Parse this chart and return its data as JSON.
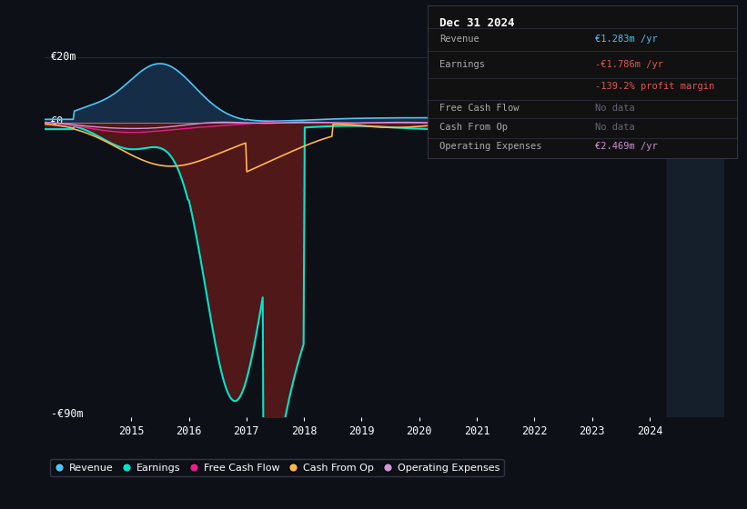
{
  "bg_color": "#0d1117",
  "plot_bg_color": "#0d1117",
  "y_label_top": "€20m",
  "y_label_bottom": "-€90m",
  "y_zero_label": "€0",
  "x_ticks": [
    2015,
    2016,
    2017,
    2018,
    2019,
    2020,
    2021,
    2022,
    2023,
    2024
  ],
  "ylim": [
    -90,
    25
  ],
  "xlim": [
    2013.5,
    2025.3
  ],
  "series_colors": {
    "revenue": "#4fc3f7",
    "earnings": "#00e5cc",
    "free_cash_flow": "#e91e8c",
    "cash_from_op": "#ffb74d",
    "operating_expenses": "#ce93d8"
  },
  "fill_colors": {
    "revenue": "#1a3a5c",
    "earnings": "#5c1a1a"
  },
  "info_box": {
    "title": "Dec 31 2024",
    "revenue_val": "€1.283m /yr",
    "earnings_val": "-€1.786m /yr",
    "margin_val": "-139.2% profit margin",
    "fcf_val": "No data",
    "cfo_val": "No data",
    "opex_val": "€2.469m /yr"
  },
  "legend_labels": [
    "Revenue",
    "Earnings",
    "Free Cash Flow",
    "Cash From Op",
    "Operating Expenses"
  ],
  "legend_colors": [
    "#4fc3f7",
    "#00e5cc",
    "#e91e8c",
    "#ffb74d",
    "#ce93d8"
  ],
  "highlight_x_start": 2024.3,
  "highlight_x_end": 2025.3,
  "highlight_color": "#1a2a3a"
}
